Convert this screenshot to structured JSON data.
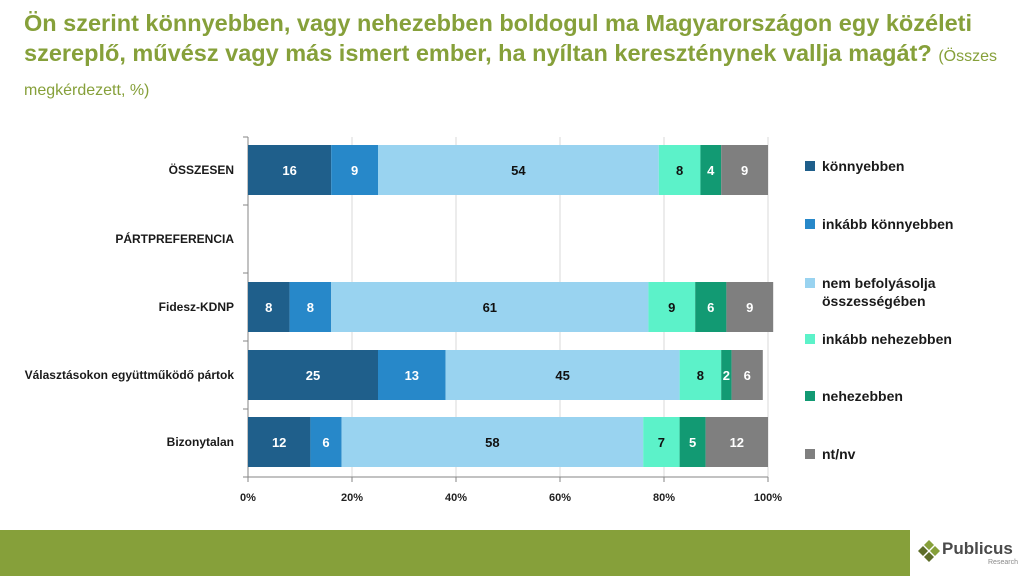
{
  "title": {
    "main": "Ön szerint könnyebben, vagy nehezebben boldogul ma Magyarországon egy közéleti szereplő, művész vagy más ismert ember, ha nyíltan kereszténynek vallja magát?",
    "subtitle": "(Összes megkérdezett, %)"
  },
  "chart_data": {
    "type": "bar",
    "orientation": "horizontal",
    "stacked": true,
    "categories": [
      "ÖSSZESEN",
      "PÁRTPREFERENCIA",
      "Fidesz-KDNP",
      "Választásokon együttműködő pártok",
      "Bizonytalan"
    ],
    "series": [
      {
        "name": "könnyebben",
        "color": "#1F5F8B",
        "values": [
          16,
          null,
          8,
          25,
          12
        ]
      },
      {
        "name": "inkább könnyebben",
        "color": "#2788C9",
        "values": [
          9,
          null,
          8,
          13,
          6
        ]
      },
      {
        "name": "nem befolyásolja összességében",
        "color": "#99D3F0",
        "values": [
          54,
          null,
          61,
          45,
          58
        ]
      },
      {
        "name": "inkább nehezebben",
        "color": "#5CF2C9",
        "values": [
          8,
          null,
          9,
          8,
          7
        ]
      },
      {
        "name": "nehezebben",
        "color": "#129A73",
        "values": [
          4,
          null,
          6,
          2,
          5
        ]
      },
      {
        "name": "nt/nv",
        "color": "#7F7F7F",
        "values": [
          9,
          null,
          9,
          6,
          12
        ]
      }
    ],
    "xlim": [
      0,
      100
    ],
    "xticks": [
      "0%",
      "20%",
      "40%",
      "60%",
      "80%",
      "100%"
    ],
    "xlabel": "",
    "ylabel": "",
    "grid": true,
    "legend": "right",
    "legend_labels": [
      "könnyebben",
      "inkább könnyebben",
      "nem befolyásolja\nösszességében",
      "inkább nehezebben",
      "nehezebben",
      "nt/nv"
    ]
  },
  "logo": {
    "name": "Publicus",
    "sub": "Research",
    "colors": [
      "#86A03A",
      "#5E6E2A"
    ]
  }
}
